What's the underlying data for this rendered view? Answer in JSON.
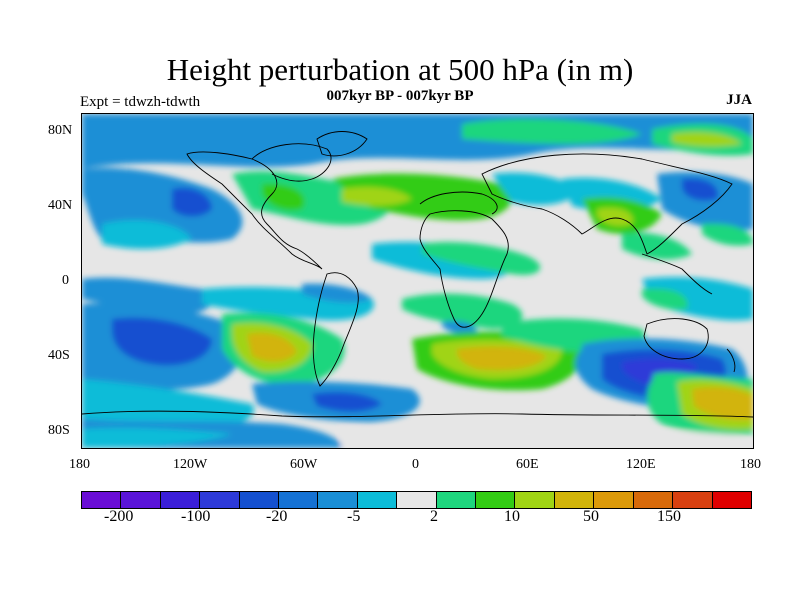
{
  "title": "Height perturbation at 500 hPa (in m)",
  "subtitle": "007kyr BP - 007kyr BP",
  "expt_label": "Expt = tdwzh-tdwth",
  "season": "JJA",
  "lat_ticks": [
    "80N",
    "40N",
    "0",
    "40S",
    "80S"
  ],
  "lon_ticks": [
    "180",
    "120W",
    "60W",
    "0",
    "60E",
    "120E",
    "180"
  ],
  "colorbar": {
    "colors": [
      "#6a0dd6",
      "#5a14d8",
      "#3b1ed8",
      "#2d3ad8",
      "#1450d0",
      "#1572d4",
      "#1a8fd6",
      "#0cbcd8",
      "#e6e6e6",
      "#1ed67e",
      "#33cc14",
      "#a0d414",
      "#d2b40a",
      "#dc9a0a",
      "#d86a0a",
      "#d84010",
      "#e00000"
    ],
    "labels": [
      "-200",
      "-100",
      "-20",
      "-5",
      "2",
      "10",
      "50",
      "150"
    ]
  }
}
